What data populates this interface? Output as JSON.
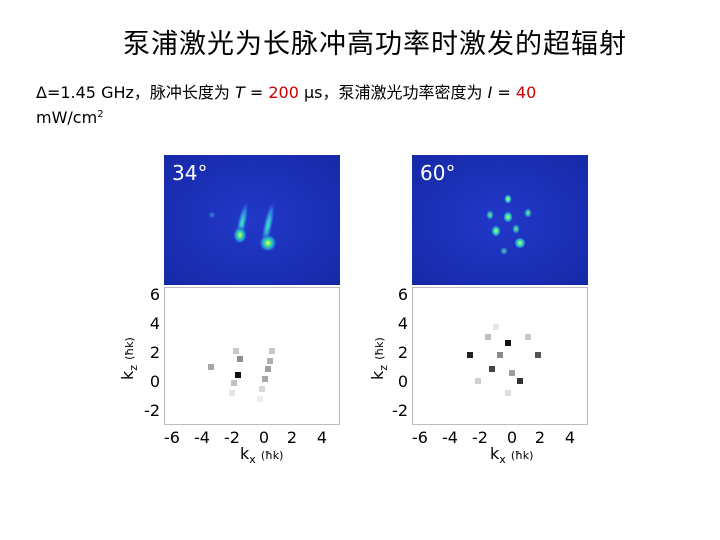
{
  "title": "泵浦激光为长脉冲高功率时激发的超辐射",
  "caption": {
    "line1_a": "Δ=1.45 GHz，脉冲长度为 ",
    "T": "T",
    "line1_b": " = ",
    "T_value": "200",
    "line1_c": " μs，泵浦激光功率密度为 ",
    "I": "I",
    "line1_d": " = ",
    "I_value": "40",
    "line2": "mW/cm",
    "line2_sup": "2"
  },
  "panels": [
    {
      "angle": "34°"
    },
    {
      "angle": "60°"
    }
  ],
  "axes": {
    "y_ticks": [
      "6",
      "4",
      "2",
      "0",
      "-2"
    ],
    "x_ticks": [
      "-6",
      "-4",
      "-2",
      "0",
      "2",
      "4"
    ],
    "ylabel": "k",
    "ylabel_sub": "z",
    "ylabel_unit": "(ħk)",
    "xlabel": "k",
    "xlabel_sub": "x",
    "xlabel_unit": "(ħk)"
  },
  "colors": {
    "image_bg": "#1a2fb8",
    "caption_red": "#cc0000"
  }
}
